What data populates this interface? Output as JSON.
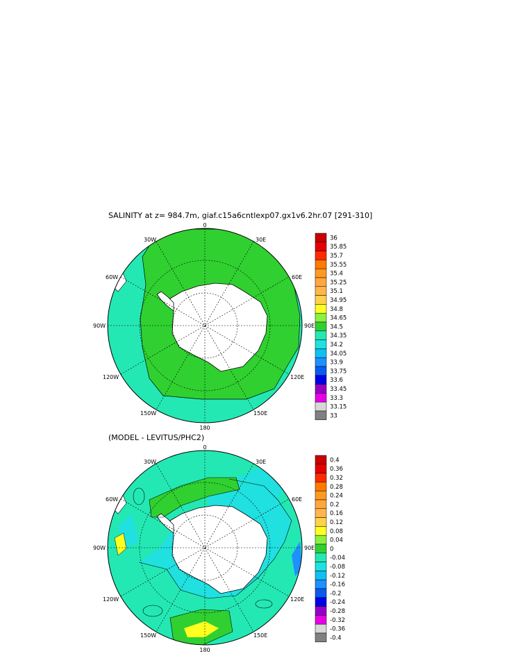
{
  "title": "SALINITY at z= 984.7m, giaf.c15a6cntlexp07.gx1v6.2hr.07 [291-310]",
  "subtitle": "(MODEL - LEVITUS/PHC2)",
  "longitude_labels": {
    "lon0": "0",
    "lon30e": "30E",
    "lon60e": "60E",
    "lon90e": "90E",
    "lon120e": "120E",
    "lon150e": "150E",
    "lon180": "180",
    "lon150w": "150W",
    "lon120w": "120W",
    "lon90w": "90W",
    "lon60w": "60W",
    "lon30w": "30W"
  },
  "colorbar_top": {
    "labels": [
      "36",
      "35.85",
      "35.7",
      "35.55",
      "35.4",
      "35.25",
      "35.1",
      "34.95",
      "34.8",
      "34.65",
      "34.5",
      "34.35",
      "34.2",
      "34.05",
      "33.9",
      "33.75",
      "33.6",
      "33.45",
      "33.3",
      "33.15",
      "33"
    ],
    "colors": [
      "#c80000",
      "#e60000",
      "#ff2a00",
      "#ff7a00",
      "#ff9a20",
      "#ffa640",
      "#ffb64a",
      "#ffd24a",
      "#ffff20",
      "#8cf040",
      "#30d030",
      "#24e8b4",
      "#20e0e0",
      "#10c0f0",
      "#1e90ff",
      "#0a5af0",
      "#0000e6",
      "#9600c8",
      "#e600e6",
      "#d8d8d8",
      "#808080"
    ]
  },
  "colorbar_bottom": {
    "labels": [
      "0.4",
      "0.36",
      "0.32",
      "0.28",
      "0.24",
      "0.2",
      "0.16",
      "0.12",
      "0.08",
      "0.04",
      "0",
      "-0.04",
      "-0.08",
      "-0.12",
      "-0.16",
      "-0.2",
      "-0.24",
      "-0.28",
      "-0.32",
      "-0.36",
      "-0.4"
    ],
    "colors": [
      "#c80000",
      "#e60000",
      "#ff2a00",
      "#ff7a00",
      "#ff9a20",
      "#ffa640",
      "#ffb64a",
      "#ffd24a",
      "#ffff20",
      "#8cf040",
      "#30d030",
      "#24e8b4",
      "#20e0e0",
      "#10c0f0",
      "#1e90ff",
      "#0a5af0",
      "#0000e6",
      "#9600c8",
      "#e600e6",
      "#d8d8d8",
      "#808080"
    ]
  }
}
